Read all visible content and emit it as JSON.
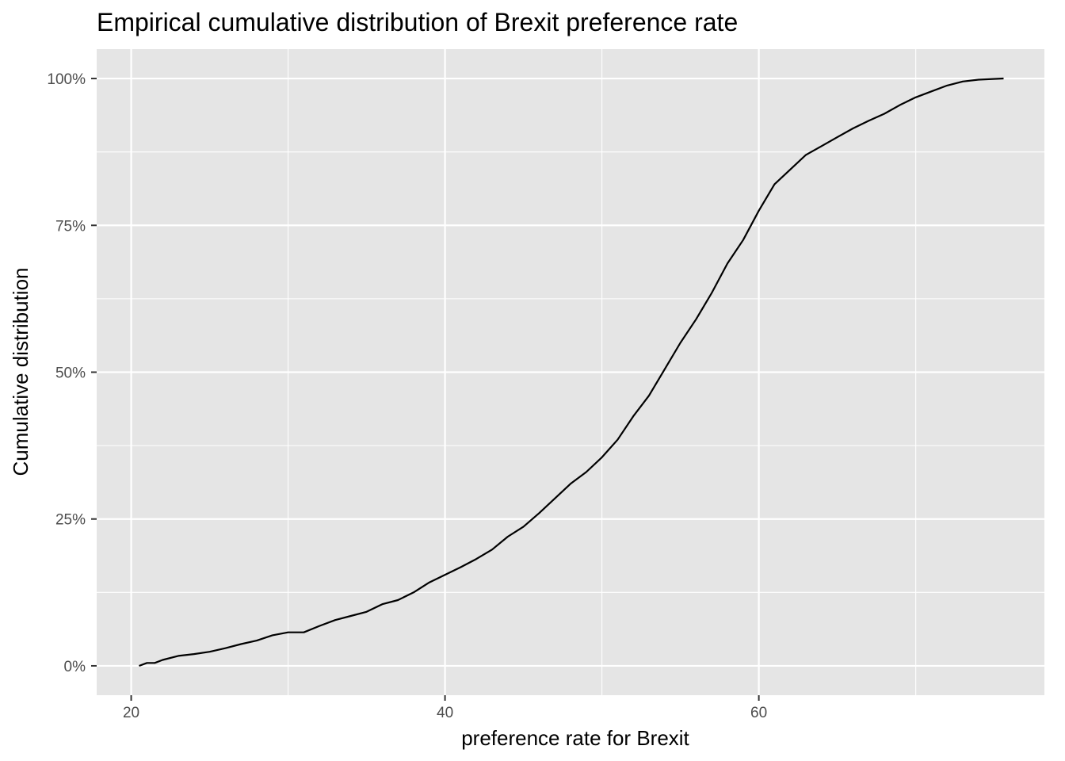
{
  "chart_data": {
    "type": "line",
    "title": "Empirical cumulative distribution of Brexit preference rate",
    "xlabel": "preference rate for Brexit",
    "ylabel": "Cumulative distribution",
    "xlim": [
      17.8,
      78.2
    ],
    "ylim": [
      -0.05,
      1.05
    ],
    "x_ticks": [
      20,
      40,
      60
    ],
    "x_tick_labels": [
      "20",
      "40",
      "60"
    ],
    "x_minor_ticks": [
      30,
      50,
      70
    ],
    "y_ticks": [
      0,
      0.25,
      0.5,
      0.75,
      1.0
    ],
    "y_tick_labels": [
      "0%",
      "25%",
      "50%",
      "75%",
      "100%"
    ],
    "y_minor_ticks": [
      0.125,
      0.375,
      0.625,
      0.875
    ],
    "grid": true,
    "colors": {
      "panel": "#e5e5e5",
      "grid": "#ffffff",
      "line": "#000000"
    },
    "series": [
      {
        "x": [
          20.5,
          21.0,
          21.5,
          22.0,
          23.0,
          24.0,
          25.0,
          26.0,
          27.0,
          28.0,
          29.0,
          30.0,
          31.0,
          32.0,
          33.0,
          34.0,
          35.0,
          36.0,
          37.0,
          38.0,
          39.0,
          40.0,
          41.0,
          42.0,
          43.0,
          44.0,
          45.0,
          46.0,
          47.0,
          48.0,
          49.0,
          50.0,
          51.0,
          52.0,
          53.0,
          54.0,
          55.0,
          56.0,
          57.0,
          58.0,
          59.0,
          60.0,
          61.0,
          62.0,
          63.0,
          64.0,
          65.0,
          66.0,
          67.0,
          68.0,
          69.0,
          70.0,
          71.0,
          72.0,
          73.0,
          74.0,
          75.6
        ],
        "y": [
          0.0,
          0.005,
          0.005,
          0.01,
          0.017,
          0.02,
          0.024,
          0.03,
          0.037,
          0.043,
          0.052,
          0.057,
          0.057,
          0.068,
          0.078,
          0.085,
          0.092,
          0.105,
          0.112,
          0.125,
          0.142,
          0.155,
          0.168,
          0.182,
          0.198,
          0.22,
          0.237,
          0.26,
          0.285,
          0.31,
          0.33,
          0.355,
          0.385,
          0.425,
          0.46,
          0.505,
          0.55,
          0.59,
          0.635,
          0.685,
          0.725,
          0.775,
          0.82,
          0.845,
          0.87,
          0.885,
          0.9,
          0.915,
          0.928,
          0.94,
          0.955,
          0.968,
          0.978,
          0.988,
          0.995,
          0.998,
          1.0
        ]
      }
    ]
  }
}
